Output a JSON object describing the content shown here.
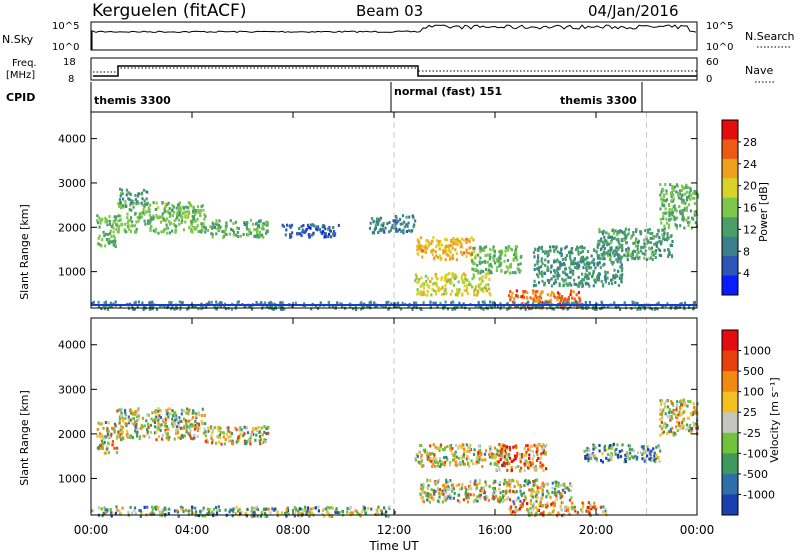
{
  "header": {
    "station": "Kerguelen (fitACF)",
    "beam": "Beam 03",
    "date": "04/Jan/2016"
  },
  "nsky_panel": {
    "label": "N.Sky",
    "y_top": "10^5",
    "y_bottom": "10^0",
    "right_label": "N.Search",
    "right_top": "10^5",
    "right_bottom": "10^0"
  },
  "freq_panel": {
    "label_top": "Freq.",
    "label_unit": "[MHz]",
    "y_top": "18",
    "y_bottom": "8",
    "right_label": "Nave",
    "right_top": "60",
    "right_bottom": "0"
  },
  "cpid_panel": {
    "label": "CPID",
    "modes": [
      {
        "name": "themis 3300",
        "x_hour": 0.05
      },
      {
        "name": "normal (fast) 151",
        "x_hour": 12.05
      },
      {
        "name": "themis 3300",
        "x_hour": 19.3
      }
    ]
  },
  "x_axis": {
    "label": "Time UT",
    "ticks": [
      "00:00",
      "04:00",
      "08:00",
      "12:00",
      "16:00",
      "20:00",
      "00:00"
    ]
  },
  "colors": {
    "missing_line": "#1a3cc8",
    "dashed_marker": "#c8c8c8"
  },
  "chart_data": [
    {
      "type": "heatmap",
      "title": "Power",
      "ylabel": "Slant Range [km]",
      "xlabel": "Time UT",
      "xlim": [
        0,
        24
      ],
      "ylim": [
        180,
        4600
      ],
      "yticks": [
        "1000",
        "2000",
        "3000",
        "4000"
      ],
      "colorbar": {
        "label": "Power [dB]",
        "ticks": [
          "4",
          "8",
          "12",
          "16",
          "20",
          "24",
          "28"
        ],
        "range": [
          0,
          32
        ],
        "colors": [
          "#0a1cff",
          "#2d55b5",
          "#3b7f8c",
          "#4a9e6a",
          "#7cc84a",
          "#d9d22a",
          "#f0a020",
          "#ee5a14",
          "#e40d0d"
        ]
      },
      "regions": [
        {
          "t0": 0.2,
          "t1": 1.0,
          "r0": 1600,
          "r1": 2300,
          "level": 14
        },
        {
          "t0": 1.0,
          "t1": 4.5,
          "r0": 1900,
          "r1": 2600,
          "level": 15
        },
        {
          "t0": 1.1,
          "t1": 2.2,
          "r0": 2500,
          "r1": 2900,
          "level": 12
        },
        {
          "t0": 4.5,
          "t1": 7.0,
          "r0": 1800,
          "r1": 2200,
          "level": 13
        },
        {
          "t0": 7.5,
          "t1": 9.8,
          "r0": 1800,
          "r1": 2100,
          "level": 6
        },
        {
          "t0": 11.0,
          "t1": 12.8,
          "r0": 1900,
          "r1": 2300,
          "level": 9
        },
        {
          "t0": 12.8,
          "t1": 15.2,
          "r0": 1300,
          "r1": 1800,
          "level": 22
        },
        {
          "t0": 12.8,
          "t1": 15.8,
          "r0": 500,
          "r1": 1000,
          "level": 19
        },
        {
          "t0": 15.0,
          "t1": 17.0,
          "r0": 1000,
          "r1": 1600,
          "level": 14
        },
        {
          "t0": 16.5,
          "t1": 19.5,
          "r0": 200,
          "r1": 600,
          "level": 26
        },
        {
          "t0": 17.5,
          "t1": 21.0,
          "r0": 700,
          "r1": 1600,
          "level": 11
        },
        {
          "t0": 20.0,
          "t1": 23.0,
          "r0": 1300,
          "r1": 2000,
          "level": 12
        },
        {
          "t0": 22.5,
          "t1": 24.0,
          "r0": 2000,
          "r1": 3000,
          "level": 14
        },
        {
          "t0": 0.0,
          "t1": 24.0,
          "r0": 180,
          "r1": 350,
          "level": 10
        }
      ]
    },
    {
      "type": "heatmap",
      "title": "Velocity",
      "ylabel": "Slant Range [km]",
      "xlabel": "Time UT",
      "xlim": [
        0,
        24
      ],
      "ylim": [
        180,
        4600
      ],
      "yticks": [
        "1000",
        "2000",
        "3000",
        "4000"
      ],
      "colorbar": {
        "label": "Velocity [m s⁻¹]",
        "ticks": [
          "1000",
          "500",
          "100",
          "25",
          "-25",
          "-100",
          "-500",
          "-1000"
        ],
        "colors": [
          "#1a3fb0",
          "#2f6fa8",
          "#3e9a5c",
          "#70c33a",
          "#c6c6c0",
          "#f2c020",
          "#f08a10",
          "#e8400c",
          "#e40d0d"
        ]
      },
      "regions": [
        {
          "t0": 0.2,
          "t1": 1.0,
          "r0": 1600,
          "r1": 2300,
          "level": 4
        },
        {
          "t0": 1.0,
          "t1": 4.5,
          "r0": 1900,
          "r1": 2600,
          "level": 4
        },
        {
          "t0": 4.5,
          "t1": 7.0,
          "r0": 1800,
          "r1": 2200,
          "level": 4
        },
        {
          "t0": 12.8,
          "t1": 16.5,
          "r0": 1300,
          "r1": 1800,
          "level": 4
        },
        {
          "t0": 16.0,
          "t1": 18.0,
          "r0": 1200,
          "r1": 1800,
          "level": 6
        },
        {
          "t0": 16.5,
          "t1": 20.5,
          "r0": 200,
          "r1": 500,
          "level": 5
        },
        {
          "t0": 19.5,
          "t1": 22.5,
          "r0": 1400,
          "r1": 1800,
          "level": 2
        },
        {
          "t0": 13.0,
          "t1": 19.0,
          "r0": 500,
          "r1": 1000,
          "level": 4
        },
        {
          "t0": 22.5,
          "t1": 24.0,
          "r0": 2000,
          "r1": 2800,
          "level": 4
        },
        {
          "t0": 0.0,
          "t1": 12.0,
          "r0": 180,
          "r1": 400,
          "level": 3
        }
      ]
    }
  ]
}
